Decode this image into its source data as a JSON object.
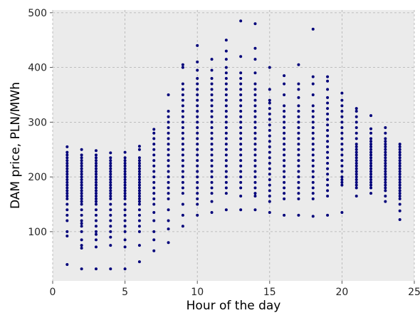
{
  "chart_data": {
    "type": "scatter",
    "title": "",
    "xlabel": "Hour of the day",
    "ylabel": "DAM price, PLN/MWh",
    "xlim": [
      0,
      25
    ],
    "ylim": [
      10,
      505
    ],
    "xticks": [
      0,
      5,
      10,
      15,
      20,
      25
    ],
    "yticks": [
      100,
      200,
      300,
      400,
      500
    ],
    "grid": true,
    "legend": "none",
    "colors": {
      "points": "#00007a",
      "background": "#ebebeb",
      "grid": "#b0b0b0"
    },
    "series": [
      {
        "points_by_hour": [
          {
            "x": 1,
            "y": [
              40,
              92,
              100,
              120,
              130,
              140,
              150,
              160,
              165,
              170,
              175,
              180,
              185,
              190,
              195,
              200,
              205,
              210,
              215,
              220,
              225,
              230,
              235,
              240,
              245,
              255
            ]
          },
          {
            "x": 2,
            "y": [
              32,
              70,
              75,
              85,
              100,
              110,
              115,
              120,
              130,
              140,
              150,
              155,
              160,
              165,
              170,
              175,
              180,
              185,
              190,
              195,
              200,
              205,
              210,
              215,
              220,
              225,
              230,
              235,
              240,
              250
            ]
          },
          {
            "x": 3,
            "y": [
              32,
              72,
              85,
              95,
              100,
              110,
              120,
              130,
              140,
              150,
              155,
              160,
              165,
              170,
              175,
              180,
              185,
              190,
              195,
              200,
              205,
              210,
              215,
              220,
              225,
              230,
              235,
              240,
              248
            ]
          },
          {
            "x": 4,
            "y": [
              32,
              75,
              90,
              100,
              110,
              120,
              130,
              140,
              150,
              160,
              165,
              170,
              175,
              180,
              185,
              190,
              195,
              200,
              205,
              210,
              215,
              220,
              225,
              230,
              235,
              244
            ]
          },
          {
            "x": 5,
            "y": [
              32,
              72,
              85,
              100,
              110,
              120,
              130,
              140,
              150,
              160,
              165,
              170,
              175,
              180,
              185,
              190,
              195,
              200,
              205,
              210,
              215,
              220,
              225,
              230,
              235,
              245
            ]
          },
          {
            "x": 6,
            "y": [
              45,
              75,
              100,
              110,
              120,
              130,
              140,
              150,
              155,
              160,
              165,
              170,
              175,
              180,
              185,
              190,
              195,
              200,
              205,
              210,
              215,
              220,
              225,
              230,
              235,
              250,
              256
            ]
          },
          {
            "x": 7,
            "y": [
              65,
              85,
              100,
              120,
              135,
              150,
              160,
              170,
              180,
              190,
              200,
              210,
              220,
              230,
              240,
              250,
              260,
              270,
              280,
              287
            ]
          },
          {
            "x": 8,
            "y": [
              80,
              105,
              120,
              140,
              160,
              170,
              180,
              190,
              200,
              210,
              220,
              230,
              240,
              250,
              260,
              270,
              280,
              290,
              300,
              310,
              320,
              350
            ]
          },
          {
            "x": 9,
            "y": [
              110,
              130,
              150,
              170,
              180,
              190,
              200,
              210,
              220,
              230,
              240,
              250,
              260,
              270,
              280,
              290,
              300,
              310,
              320,
              330,
              340,
              350,
              360,
              370,
              400,
              405
            ]
          },
          {
            "x": 10,
            "y": [
              130,
              150,
              160,
              170,
              180,
              190,
              200,
              210,
              220,
              230,
              240,
              250,
              260,
              270,
              280,
              290,
              300,
              310,
              320,
              330,
              340,
              350,
              360,
              370,
              380,
              395,
              410,
              440
            ]
          },
          {
            "x": 11,
            "y": [
              135,
              155,
              170,
              180,
              190,
              200,
              210,
              220,
              230,
              240,
              250,
              260,
              270,
              280,
              290,
              300,
              310,
              320,
              330,
              340,
              350,
              360,
              370,
              380,
              395,
              415
            ]
          },
          {
            "x": 12,
            "y": [
              140,
              170,
              180,
              190,
              200,
              210,
              220,
              230,
              240,
              250,
              260,
              270,
              280,
              290,
              300,
              310,
              320,
              330,
              340,
              350,
              360,
              370,
              380,
              390,
              400,
              415,
              430,
              450
            ]
          },
          {
            "x": 13,
            "y": [
              140,
              165,
              180,
              190,
              200,
              210,
              220,
              230,
              240,
              250,
              260,
              270,
              280,
              290,
              300,
              310,
              320,
              330,
              340,
              350,
              360,
              370,
              380,
              390,
              420,
              485
            ]
          },
          {
            "x": 14,
            "y": [
              140,
              165,
              170,
              180,
              190,
              200,
              210,
              220,
              230,
              240,
              250,
              260,
              270,
              280,
              290,
              300,
              310,
              320,
              330,
              340,
              350,
              360,
              370,
              390,
              415,
              435,
              480
            ]
          },
          {
            "x": 15,
            "y": [
              135,
              155,
              165,
              175,
              185,
              195,
              205,
              215,
              225,
              235,
              245,
              255,
              265,
              275,
              285,
              295,
              305,
              315,
              325,
              335,
              340,
              360,
              400
            ]
          },
          {
            "x": 16,
            "y": [
              130,
              160,
              170,
              180,
              190,
              200,
              210,
              220,
              230,
              240,
              250,
              260,
              270,
              280,
              290,
              300,
              310,
              320,
              330,
              350,
              370,
              385
            ]
          },
          {
            "x": 17,
            "y": [
              130,
              160,
              170,
              180,
              190,
              200,
              210,
              220,
              230,
              240,
              250,
              260,
              270,
              280,
              290,
              300,
              310,
              320,
              330,
              345,
              360,
              370,
              405
            ]
          },
          {
            "x": 18,
            "y": [
              128,
              160,
              170,
              180,
              190,
              200,
              210,
              220,
              230,
              240,
              250,
              260,
              270,
              280,
              290,
              300,
              310,
              320,
              330,
              350,
              370,
              383,
              470
            ]
          },
          {
            "x": 19,
            "y": [
              130,
              165,
              175,
              185,
              195,
              205,
              215,
              225,
              235,
              245,
              255,
              265,
              275,
              285,
              295,
              305,
              315,
              325,
              335,
              345,
              360,
              375,
              383
            ]
          },
          {
            "x": 20,
            "y": [
              135,
              185,
              190,
              195,
              200,
              210,
              220,
              230,
              240,
              250,
              260,
              270,
              280,
              290,
              300,
              310,
              320,
              330,
              340,
              353
            ]
          },
          {
            "x": 21,
            "y": [
              165,
              180,
              185,
              190,
              195,
              200,
              205,
              210,
              215,
              220,
              225,
              230,
              235,
              240,
              245,
              250,
              255,
              260,
              270,
              280,
              290,
              300,
              310,
              320,
              325
            ]
          },
          {
            "x": 22,
            "y": [
              170,
              180,
              185,
              190,
              195,
              200,
              205,
              210,
              215,
              220,
              225,
              230,
              235,
              240,
              245,
              250,
              255,
              260,
              265,
              270,
              280,
              288,
              312
            ]
          },
          {
            "x": 23,
            "y": [
              155,
              165,
              175,
              180,
              185,
              190,
              195,
              200,
              205,
              210,
              215,
              220,
              225,
              230,
              235,
              240,
              245,
              250,
              255,
              260,
              265,
              270,
              280,
              290
            ]
          },
          {
            "x": 24,
            "y": [
              122,
              138,
              150,
              160,
              165,
              170,
              175,
              180,
              185,
              190,
              195,
              200,
              205,
              210,
              215,
              220,
              225,
              230,
              235,
              240,
              245,
              250,
              255,
              260
            ]
          }
        ]
      }
    ]
  }
}
